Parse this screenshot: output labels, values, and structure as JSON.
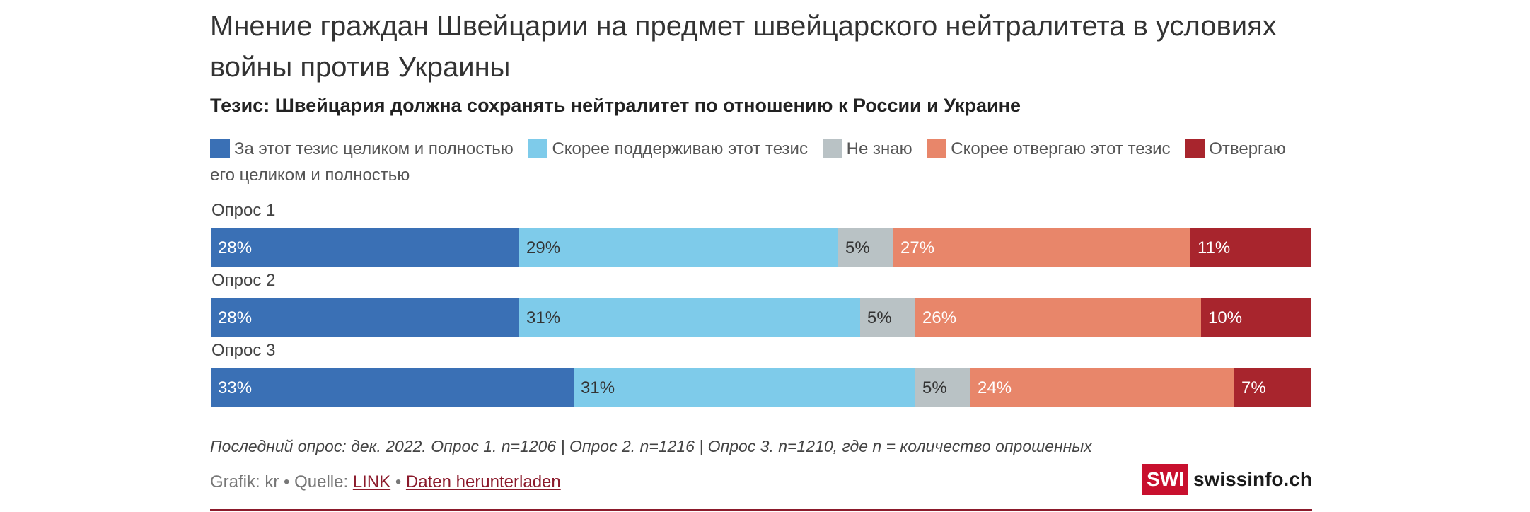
{
  "title": "Мнение граждан Швейцарии на предмет швейцарского нейтралитета в условиях войны против Украины",
  "subtitle": "Тезис: Швейцария должна сохранять нейтралитет по отношению к России и Украине",
  "colors": {
    "strong_agree": "#3a70b5",
    "agree": "#7ecbea",
    "dont_know": "#b9c2c5",
    "disagree": "#e8866a",
    "strong_disagree": "#a8252d"
  },
  "chart_data": {
    "type": "bar",
    "orientation": "horizontal",
    "stacked": true,
    "normalized": true,
    "title": "Мнение граждан Швейцарии на предмет швейцарского нейтралитета в условиях войны против Украины",
    "subtitle": "Тезис: Швейцария должна сохранять нейтралитет по отношению к России и Украине",
    "legend_position": "top",
    "grid": false,
    "categories": [
      "Опрос 1",
      "Опрос 2",
      "Опрос 3"
    ],
    "series": [
      {
        "key": "strong_agree",
        "name": "За этот тезис целиком и полностью",
        "color": "#3a70b5",
        "label_color": "#ffffff",
        "values": [
          28,
          28,
          33
        ]
      },
      {
        "key": "agree",
        "name": "Скорее поддерживаю этот тезис",
        "color": "#7ecbea",
        "label_color": "#333333",
        "values": [
          29,
          31,
          31
        ]
      },
      {
        "key": "dont_know",
        "name": "Не знаю",
        "color": "#b9c2c5",
        "label_color": "#333333",
        "values": [
          5,
          5,
          5
        ]
      },
      {
        "key": "disagree",
        "name": "Скорее отвергаю этот тезис",
        "color": "#e8866a",
        "label_color": "#ffffff",
        "values": [
          27,
          26,
          24
        ]
      },
      {
        "key": "strong_disagree",
        "name": "Отвергаю его целиком и полностью",
        "color": "#a8252d",
        "label_color": "#ffffff",
        "values": [
          11,
          10,
          7
        ]
      }
    ]
  },
  "footer": {
    "note": "Последний опрос: дек. 2022. Опрос 1. n=1206 | Опрос 2. n=1216 | Опрос 3. n=1210, где n = количество опрошенных",
    "credit_prefix": "Grafik: kr • Quelle: ",
    "source_link": "LINK",
    "separator": " • ",
    "download_link": "Daten herunterladen"
  },
  "logo": {
    "box": "SWI",
    "text": "swissinfo.ch"
  }
}
